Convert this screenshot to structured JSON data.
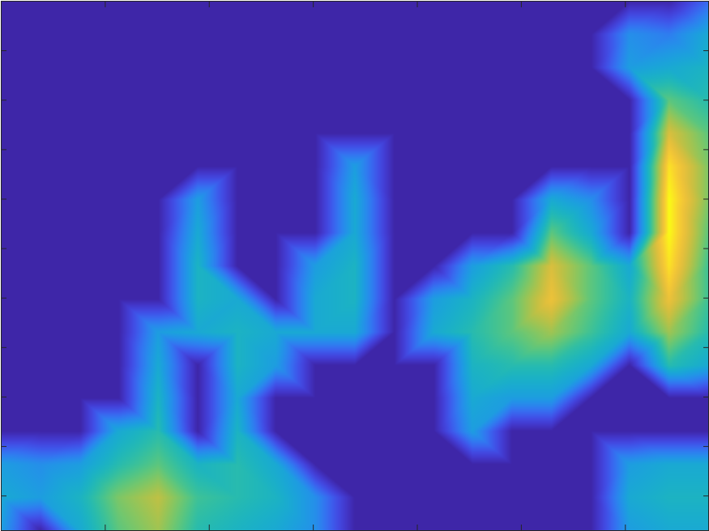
{
  "chart_data": {
    "type": "heatmap",
    "tick_labels": false,
    "xlim": [
      0,
      6.8
    ],
    "ylim": [
      0.3,
      11
    ],
    "xticks": [
      1,
      2,
      3,
      4,
      5,
      6
    ],
    "yticks": [
      1,
      2,
      3,
      4,
      5,
      6,
      7,
      8,
      9,
      10
    ],
    "zlim": [
      0,
      1
    ],
    "x": [
      0,
      0.38,
      0.76,
      1.13,
      1.51,
      1.89,
      2.27,
      2.64,
      3.02,
      3.4,
      3.78,
      4.16,
      4.53,
      4.91,
      5.29,
      5.67,
      6.04,
      6.42,
      6.8
    ],
    "y": [
      11,
      10.33,
      9.66,
      9,
      8.33,
      7.66,
      6.99,
      6.32,
      5.65,
      4.98,
      4.31,
      3.64,
      2.98,
      2.31,
      1.64,
      0.97,
      0.3
    ],
    "z": [
      [
        0,
        0,
        0,
        0,
        0,
        0,
        0,
        0,
        0,
        0,
        0,
        0,
        0,
        0,
        0,
        0,
        0,
        0,
        0.2
      ],
      [
        0,
        0,
        0,
        0,
        0,
        0,
        0,
        0,
        0,
        0,
        0,
        0,
        0,
        0,
        0,
        0,
        0.3,
        0.25,
        0.4
      ],
      [
        0,
        0,
        0,
        0,
        0,
        0,
        0,
        0,
        0,
        0,
        0,
        0,
        0,
        0,
        0,
        0,
        0.35,
        0.4,
        0.45
      ],
      [
        0,
        0,
        0,
        0,
        0,
        0,
        0,
        0,
        0,
        0,
        0,
        0,
        0,
        0,
        0,
        0,
        0,
        0.6,
        0.5
      ],
      [
        0,
        0,
        0,
        0,
        0,
        0,
        0,
        0,
        0,
        0,
        0,
        0,
        0,
        0,
        0,
        0,
        0,
        0.8,
        0.6
      ],
      [
        0,
        0,
        0,
        0,
        0,
        0,
        0,
        0,
        0,
        0.35,
        0,
        0,
        0,
        0,
        0,
        0,
        0,
        0.95,
        0.65
      ],
      [
        0,
        0,
        0,
        0,
        0,
        0.35,
        0,
        0,
        0,
        0.4,
        0,
        0,
        0,
        0,
        0.4,
        0.3,
        0,
        1,
        0.65
      ],
      [
        0,
        0,
        0,
        0,
        0,
        0.4,
        0,
        0,
        0,
        0.4,
        0,
        0,
        0,
        0,
        0.6,
        0.4,
        0,
        1,
        0.6
      ],
      [
        0,
        0,
        0,
        0,
        0,
        0.45,
        0,
        0,
        0.35,
        0.45,
        0,
        0,
        0.35,
        0.5,
        0.8,
        0.6,
        0.4,
        0.95,
        0.55
      ],
      [
        0,
        0,
        0,
        0,
        0,
        0.45,
        0.4,
        0,
        0.4,
        0.45,
        0,
        0.35,
        0.45,
        0.6,
        0.85,
        0.6,
        0.45,
        0.85,
        0.55
      ],
      [
        0,
        0,
        0,
        0,
        0.35,
        0.4,
        0.45,
        0.4,
        0.4,
        0.4,
        0,
        0.4,
        0.5,
        0.6,
        0.7,
        0.55,
        0.4,
        0.7,
        0.5
      ],
      [
        0,
        0,
        0,
        0,
        0.4,
        0,
        0.45,
        0.35,
        0,
        0,
        0,
        0,
        0.45,
        0.5,
        0.5,
        0.4,
        0,
        0.5,
        0.4
      ],
      [
        0,
        0,
        0,
        0,
        0.45,
        0,
        0.4,
        0,
        0,
        0,
        0,
        0,
        0.4,
        0.35,
        0.35,
        0,
        0,
        0,
        0
      ],
      [
        0,
        0,
        0,
        0.4,
        0.5,
        0,
        0.45,
        0,
        0,
        0,
        0,
        0,
        0.35,
        0,
        0,
        0,
        0,
        0,
        0
      ],
      [
        0.35,
        0.3,
        0.35,
        0.5,
        0.6,
        0.45,
        0.5,
        0.4,
        0,
        0,
        0,
        0,
        0,
        0,
        0,
        0,
        0.35,
        0.4,
        0.4
      ],
      [
        0.4,
        0.35,
        0.45,
        0.65,
        0.75,
        0.55,
        0.5,
        0.45,
        0.3,
        0,
        0,
        0,
        0,
        0,
        0,
        0,
        0.4,
        0.45,
        0.45
      ],
      [
        0.35,
        0,
        0.4,
        0.6,
        0.7,
        0.5,
        0.45,
        0.4,
        0.3,
        0,
        0,
        0,
        0,
        0,
        0,
        0,
        0.35,
        0.4,
        0.4
      ]
    ]
  }
}
